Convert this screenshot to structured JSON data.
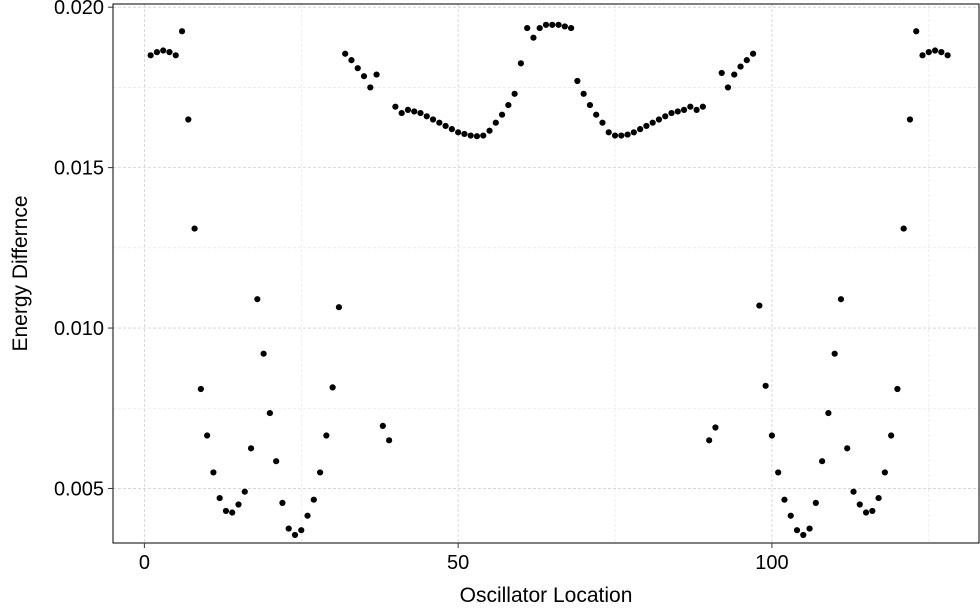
{
  "chart_data": {
    "type": "scatter",
    "title": "",
    "xlabel": "Oscillator Location",
    "ylabel": "Energy Differnce",
    "xlim": [
      -5,
      133
    ],
    "ylim": [
      0.0033,
      0.0201
    ],
    "x_ticks": [
      0,
      50,
      100
    ],
    "x_tick_labels": [
      "0",
      "50",
      "100"
    ],
    "y_ticks": [
      0.005,
      0.01,
      0.015,
      0.02
    ],
    "y_tick_labels": [
      "0.005",
      "0.010",
      "0.015",
      "0.020"
    ],
    "grid": true,
    "legend": "none",
    "point_color": "#000000",
    "series": [
      {
        "x": [
          1,
          2,
          3,
          4,
          5,
          6,
          7,
          8,
          9,
          10,
          11,
          12,
          13,
          14,
          15,
          16,
          17,
          18,
          19,
          20,
          21,
          22,
          23,
          24,
          25,
          26,
          27,
          28,
          29,
          30,
          31,
          32,
          33,
          34,
          35,
          36,
          37,
          38,
          39,
          40,
          41,
          42,
          43,
          44,
          45,
          46,
          47,
          48,
          49,
          50,
          51,
          52,
          53,
          54,
          55,
          56,
          57,
          58,
          59,
          60,
          61,
          62,
          63,
          64,
          65,
          66,
          67,
          68,
          69,
          70,
          71,
          72,
          73,
          74,
          75,
          76,
          77,
          78,
          79,
          80,
          81,
          82,
          83,
          84,
          85,
          86,
          87,
          88,
          89,
          90,
          91,
          92,
          93,
          94,
          95,
          96,
          97,
          98,
          99,
          100,
          101,
          102,
          103,
          104,
          105,
          106,
          107,
          108,
          109,
          110,
          111,
          112,
          113,
          114,
          115,
          116,
          117,
          118,
          119,
          120,
          121,
          122,
          123,
          124,
          125,
          126,
          127,
          128
        ],
        "y": [
          0.0185,
          0.0186,
          0.01865,
          0.0186,
          0.0185,
          0.01925,
          0.0165,
          0.0131,
          0.0081,
          0.00665,
          0.0055,
          0.0047,
          0.0043,
          0.00425,
          0.0045,
          0.0049,
          0.00625,
          0.0109,
          0.0092,
          0.00735,
          0.00585,
          0.00455,
          0.00375,
          0.00355,
          0.0037,
          0.00415,
          0.00465,
          0.0055,
          0.00665,
          0.00815,
          0.01065,
          0.01855,
          0.01835,
          0.0181,
          0.01785,
          0.0175,
          0.0179,
          0.00695,
          0.0065,
          0.0169,
          0.0167,
          0.0168,
          0.01675,
          0.0167,
          0.0166,
          0.0165,
          0.0164,
          0.0163,
          0.0162,
          0.0161,
          0.01605,
          0.016,
          0.01598,
          0.016,
          0.01615,
          0.0164,
          0.01665,
          0.01695,
          0.0173,
          0.01825,
          0.01935,
          0.01905,
          0.01935,
          0.01945,
          0.01945,
          0.01945,
          0.0194,
          0.01935,
          0.0177,
          0.0173,
          0.01695,
          0.01665,
          0.0164,
          0.0161,
          0.016,
          0.016,
          0.01603,
          0.0161,
          0.0162,
          0.0163,
          0.0164,
          0.0165,
          0.0166,
          0.0167,
          0.01675,
          0.0168,
          0.0169,
          0.0168,
          0.0169,
          0.0065,
          0.0069,
          0.01795,
          0.0175,
          0.0179,
          0.01815,
          0.01835,
          0.01855,
          0.0107,
          0.0082,
          0.00665,
          0.0055,
          0.00465,
          0.00415,
          0.0037,
          0.00355,
          0.00375,
          0.00455,
          0.00585,
          0.00735,
          0.0092,
          0.0109,
          0.00625,
          0.0049,
          0.0045,
          0.00425,
          0.0043,
          0.0047,
          0.0055,
          0.00665,
          0.0081,
          0.0131,
          0.0165,
          0.01925,
          0.0185,
          0.0186,
          0.01865,
          0.0186,
          0.0185
        ]
      }
    ]
  }
}
